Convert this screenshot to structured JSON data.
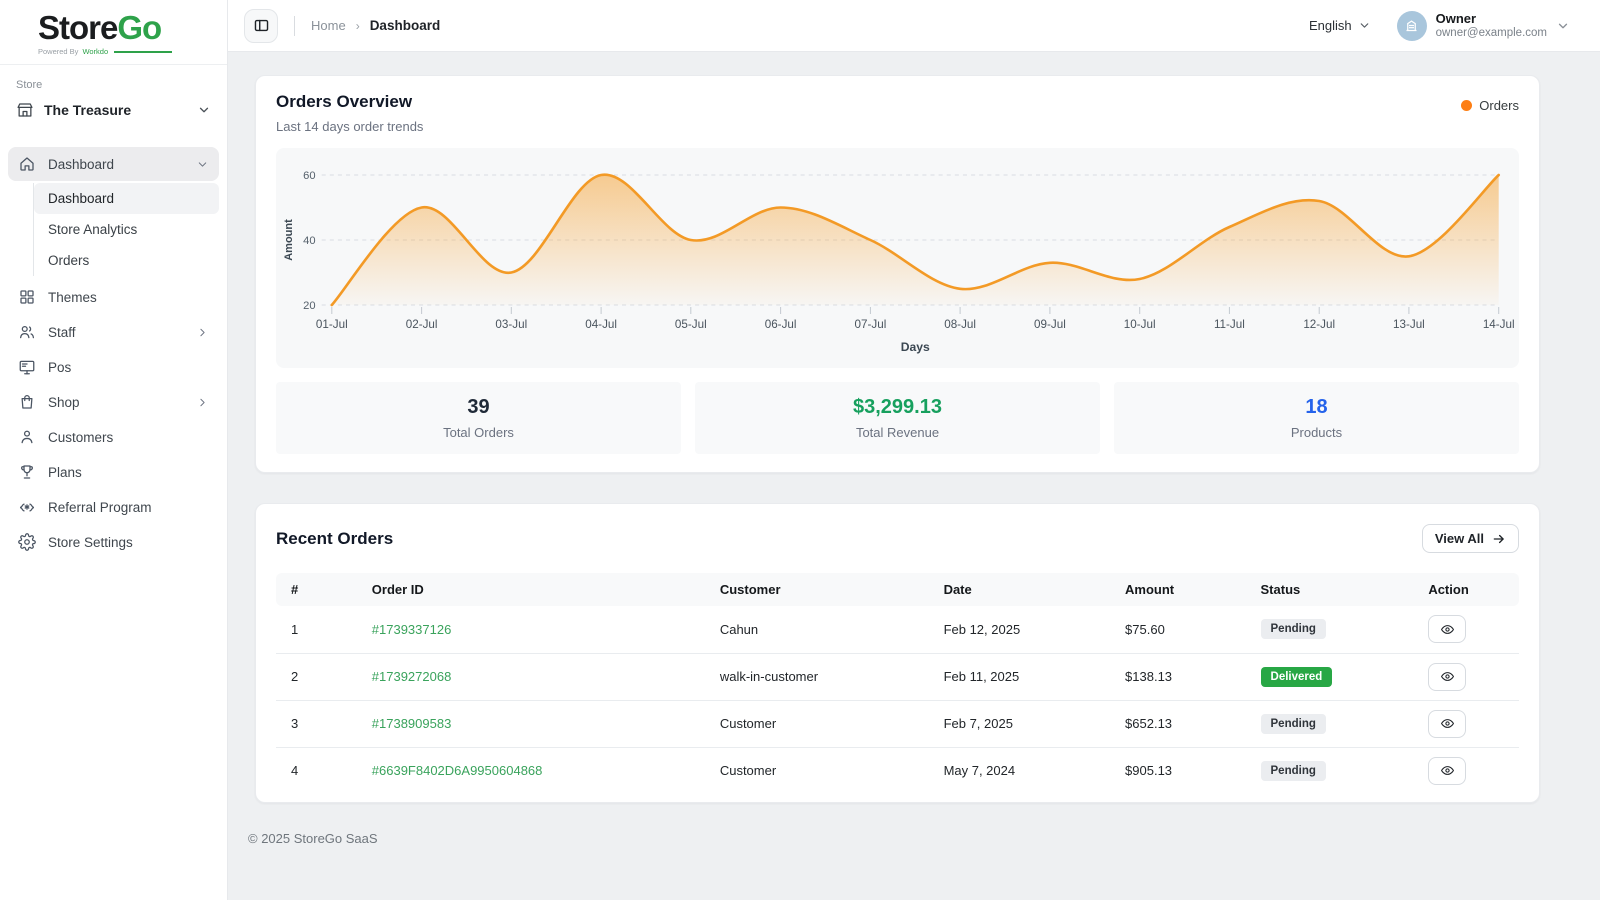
{
  "brand": {
    "name_primary": "Store",
    "name_secondary": "Go",
    "powered_by_prefix": "Powered By",
    "powered_by_brand": "Workdo",
    "accent_green": "#2ea24a"
  },
  "sidebar": {
    "section_label": "Store",
    "store_name": "The Treasure",
    "items": [
      {
        "label": "Dashboard",
        "icon": "home",
        "expanded": true,
        "active": true,
        "children": [
          {
            "label": "Dashboard",
            "current": true
          },
          {
            "label": "Store Analytics",
            "current": false
          },
          {
            "label": "Orders",
            "current": false
          }
        ]
      },
      {
        "label": "Themes",
        "icon": "grid"
      },
      {
        "label": "Staff",
        "icon": "users",
        "chevron": "right"
      },
      {
        "label": "Pos",
        "icon": "monitor"
      },
      {
        "label": "Shop",
        "icon": "bag",
        "chevron": "right"
      },
      {
        "label": "Customers",
        "icon": "person"
      },
      {
        "label": "Plans",
        "icon": "trophy"
      },
      {
        "label": "Referral Program",
        "icon": "referral"
      },
      {
        "label": "Store Settings",
        "icon": "gear"
      }
    ]
  },
  "header": {
    "breadcrumb_home": "Home",
    "breadcrumb_current": "Dashboard",
    "language": "English",
    "user": {
      "name": "Owner",
      "email": "owner@example.com"
    }
  },
  "overview_card": {
    "title": "Orders Overview",
    "subtitle": "Last 14 days order trends",
    "legend_label": "Orders",
    "legend_color": "#fd7e14"
  },
  "chart_data": {
    "type": "area",
    "title": "Orders Overview",
    "x": [
      "01-Jul",
      "02-Jul",
      "03-Jul",
      "04-Jul",
      "05-Jul",
      "06-Jul",
      "07-Jul",
      "08-Jul",
      "09-Jul",
      "10-Jul",
      "11-Jul",
      "12-Jul",
      "13-Jul",
      "14-Jul"
    ],
    "series": [
      {
        "name": "Orders",
        "values": [
          20,
          50,
          30,
          60,
          40,
          50,
          40,
          25,
          33,
          28,
          44,
          52,
          35,
          60
        ],
        "color": "#f39a26",
        "fill_from": "rgba(246,165,58,0.55)",
        "fill_to": "rgba(246,165,58,0.03)"
      }
    ],
    "xlabel": "Days",
    "ylabel": "Amount",
    "yticks": [
      20,
      40,
      60
    ],
    "ylim": [
      20,
      65
    ],
    "grid": "dashed-horizontal",
    "legend_position": "top-right"
  },
  "stats": [
    {
      "value": "39",
      "label": "Total Orders",
      "color": "#1f2937"
    },
    {
      "value": "$3,299.13",
      "label": "Total Revenue",
      "color": "#17a05e"
    },
    {
      "value": "18",
      "label": "Products",
      "color": "#2563eb"
    }
  ],
  "orders_card": {
    "title": "Recent Orders",
    "view_all_label": "View All",
    "columns": [
      "#",
      "Order ID",
      "Customer",
      "Date",
      "Amount",
      "Status",
      "Action"
    ],
    "link_color": "#3aa35c",
    "status_colors": {
      "pending": {
        "bg": "#ebedf0",
        "fg": "#30353b"
      },
      "delivered": {
        "bg": "#28a745",
        "fg": "#ffffff"
      }
    },
    "rows": [
      {
        "num": "1",
        "order_id": "#1739337126",
        "customer": "Cahun",
        "date": "Feb 12, 2025",
        "amount": "$75.60",
        "status": "Pending",
        "status_type": "pending"
      },
      {
        "num": "2",
        "order_id": "#1739272068",
        "customer": "walk-in-customer",
        "date": "Feb 11, 2025",
        "amount": "$138.13",
        "status": "Delivered",
        "status_type": "delivered"
      },
      {
        "num": "3",
        "order_id": "#1738909583",
        "customer": "Customer",
        "date": "Feb 7, 2025",
        "amount": "$652.13",
        "status": "Pending",
        "status_type": "pending"
      },
      {
        "num": "4",
        "order_id": "#6639F8402D6A9950604868",
        "customer": "Customer",
        "date": "May 7, 2024",
        "amount": "$905.13",
        "status": "Pending",
        "status_type": "pending"
      }
    ]
  },
  "footer": {
    "copyright": "© 2025 StoreGo SaaS"
  }
}
